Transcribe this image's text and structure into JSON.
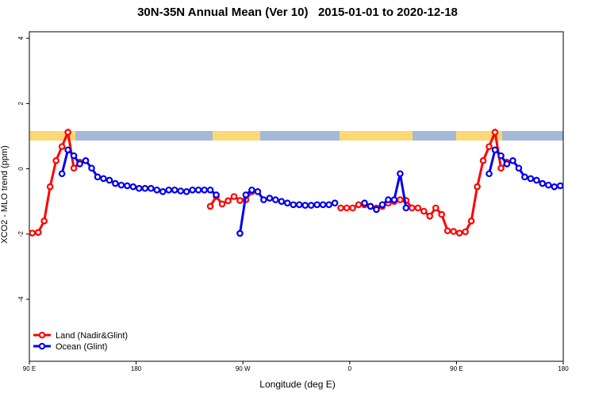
{
  "chart_data": {
    "type": "line",
    "title": "30N-35N Annual Mean (Ver 10)   2015-01-01 to 2020-12-18",
    "x_label": "Longitude (deg E)",
    "y_label": "XCO2 - MLO trend (ppm)",
    "xlim": [
      90,
      540
    ],
    "xticks": [
      {
        "value": 90,
        "label": "90 E"
      },
      180,
      {
        "value": 270,
        "label": "90 W"
      },
      {
        "value": 360,
        "label": "0"
      },
      {
        "value": 450,
        "label": "90 E"
      },
      {
        "value": 540,
        "label": "180"
      }
    ],
    "ylim": [
      -5.9,
      4.2
    ],
    "yticks": [
      -4,
      -2,
      0,
      2,
      4
    ],
    "legend": "bottom-left",
    "x": [
      92.5,
      97.5,
      102.5,
      107.5,
      112.5,
      117.5,
      122.5,
      127.5,
      132.5,
      137.5,
      142.5,
      147.5,
      152.5,
      157.5,
      162.5,
      167.5,
      172.5,
      177.5,
      182.5,
      187.5,
      192.5,
      197.5,
      202.5,
      207.5,
      212.5,
      217.5,
      222.5,
      227.5,
      232.5,
      237.5,
      242.5,
      247.5,
      252.5,
      257.5,
      262.5,
      267.5,
      272.5,
      277.5,
      282.5,
      287.5,
      292.5,
      297.5,
      302.5,
      307.5,
      312.5,
      317.5,
      322.5,
      327.5,
      332.5,
      337.5,
      342.5,
      347.5,
      352.5,
      357.5,
      362.5,
      367.5,
      372.5,
      377.5,
      382.5,
      387.5,
      392.5,
      397.5,
      402.5,
      407.5,
      412.5,
      417.5,
      422.5,
      427.5,
      432.5,
      437.5,
      442.5,
      447.5,
      452.5,
      457.5,
      462.5,
      467.5,
      472.5,
      477.5,
      482.5,
      487.5,
      492.5,
      497.5,
      502.5,
      507.5,
      512.5,
      517.5,
      522.5,
      527.5,
      532.5,
      537.5
    ],
    "series": [
      {
        "name": "Land (Nadir&Glint)",
        "color": "#ff0000",
        "values": [
          -1.97,
          -1.95,
          -1.6,
          -0.55,
          0.25,
          0.68,
          1.12,
          0.02,
          0.2,
          null,
          null,
          null,
          null,
          null,
          null,
          null,
          null,
          null,
          null,
          null,
          null,
          null,
          null,
          null,
          null,
          null,
          null,
          null,
          null,
          null,
          -1.15,
          -0.85,
          -1.08,
          -0.98,
          -0.85,
          -0.97,
          -0.95,
          -0.7,
          null,
          null,
          null,
          null,
          null,
          null,
          null,
          null,
          null,
          null,
          null,
          null,
          null,
          null,
          -1.2,
          -1.2,
          -1.2,
          -1.1,
          -1.1,
          -1.15,
          -1.2,
          -1.15,
          -1.05,
          -1.0,
          -0.95,
          -0.97,
          -1.2,
          -1.2,
          -1.3,
          -1.45,
          -1.2,
          -1.4,
          -1.9,
          -1.92,
          -1.97,
          -1.93,
          -1.6,
          -0.55,
          0.25,
          0.68,
          1.12,
          0.02,
          0.2,
          null,
          null,
          null,
          null,
          null,
          null,
          null,
          null,
          null
        ]
      },
      {
        "name": "Ocean (Glint)",
        "color": "#0000ee",
        "values": [
          null,
          null,
          null,
          null,
          null,
          -0.15,
          0.58,
          0.4,
          0.15,
          0.25,
          0.02,
          -0.25,
          -0.3,
          -0.35,
          -0.45,
          -0.5,
          -0.52,
          -0.55,
          -0.6,
          -0.6,
          -0.6,
          -0.65,
          -0.7,
          -0.65,
          -0.65,
          -0.68,
          -0.7,
          -0.65,
          -0.65,
          -0.65,
          -0.65,
          -0.8,
          null,
          null,
          null,
          -1.98,
          -0.8,
          -0.65,
          -0.7,
          -0.95,
          -0.9,
          -0.95,
          -1.0,
          -1.05,
          -1.1,
          -1.1,
          -1.12,
          -1.12,
          -1.1,
          -1.1,
          -1.1,
          -1.05,
          null,
          null,
          null,
          null,
          -1.05,
          -1.15,
          -1.25,
          -1.1,
          -0.95,
          -0.95,
          -0.15,
          -1.2,
          null,
          null,
          null,
          null,
          null,
          null,
          null,
          null,
          null,
          null,
          null,
          null,
          null,
          -0.15,
          0.58,
          0.4,
          0.15,
          0.25,
          0.02,
          -0.25,
          -0.3,
          -0.35,
          -0.45,
          -0.5,
          -0.55,
          -0.52
        ]
      }
    ]
  }
}
